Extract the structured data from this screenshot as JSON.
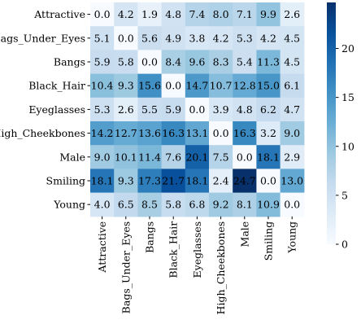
{
  "chart_data": {
    "type": "heatmap",
    "title": "",
    "xlabel": "",
    "ylabel": "",
    "rows": [
      "Attractive",
      "Bags_Under_Eyes",
      "Bangs",
      "Black_Hair",
      "Eyeglasses",
      "High_Cheekbones",
      "Male",
      "Smiling",
      "Young"
    ],
    "columns": [
      "Attractive",
      "Bags_Under_Eyes",
      "Bangs",
      "Black_Hair",
      "Eyeglasses",
      "High_Cheekbones",
      "Male",
      "Smiling",
      "Young"
    ],
    "values": [
      [
        0.0,
        4.2,
        1.9,
        4.8,
        7.4,
        8.0,
        7.1,
        9.9,
        2.6
      ],
      [
        5.1,
        0.0,
        5.6,
        4.9,
        3.8,
        4.2,
        5.3,
        4.2,
        4.5
      ],
      [
        5.9,
        5.8,
        0.0,
        8.4,
        9.6,
        8.3,
        5.4,
        11.3,
        4.5
      ],
      [
        10.4,
        9.3,
        15.6,
        0.0,
        14.7,
        10.7,
        12.8,
        15.0,
        6.1
      ],
      [
        5.3,
        2.6,
        5.5,
        5.9,
        0.0,
        3.9,
        4.8,
        6.2,
        4.7
      ],
      [
        14.2,
        12.7,
        13.6,
        16.3,
        13.1,
        0.0,
        16.3,
        3.2,
        9.0
      ],
      [
        9.0,
        10.1,
        11.4,
        7.6,
        20.1,
        7.5,
        0.0,
        18.1,
        2.9
      ],
      [
        18.1,
        9.3,
        17.3,
        21.7,
        18.1,
        2.4,
        24.7,
        0.0,
        13.0
      ],
      [
        4.0,
        6.5,
        8.5,
        5.8,
        6.8,
        9.2,
        8.1,
        10.9,
        0.0
      ]
    ],
    "value_range": [
      0,
      24.7
    ],
    "colormap": "Blues",
    "colorbar": {
      "ticks": [
        0,
        5,
        10,
        15,
        20
      ],
      "tick_labels": [
        "0",
        "5",
        "10",
        "15",
        "20"
      ]
    },
    "grid": false,
    "legend": "colorbar-right",
    "colors": {
      "low": "#f7fbff",
      "high": "#08306b",
      "text_dark": "#000000",
      "text_light": "#ffffff"
    }
  }
}
